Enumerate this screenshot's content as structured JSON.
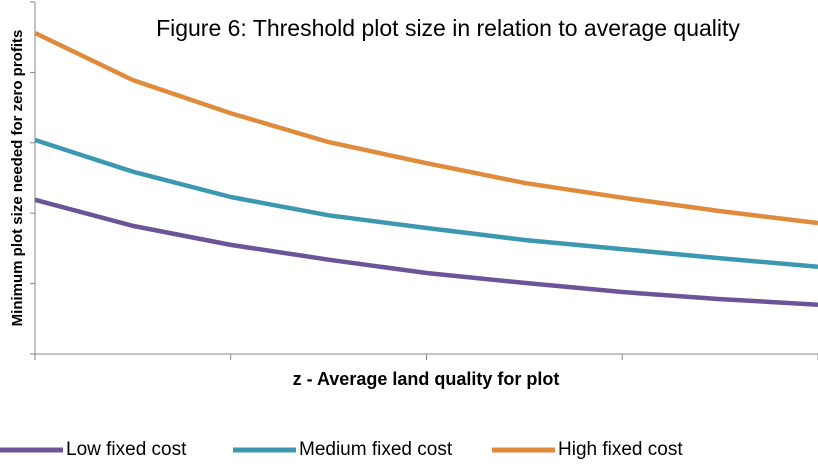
{
  "chart_data": {
    "type": "line",
    "title": "Figure 6: Threshold plot size in relation to average quality",
    "x_label": "z - Average land quality for plot",
    "y_label": "Minimum plot size needed for zero profits",
    "x": [
      0,
      0.5,
      1,
      1.5,
      2,
      2.5,
      3,
      3.5,
      4
    ],
    "series": [
      {
        "name": "Low fixed cost",
        "color": "#6b5497",
        "values": [
          2.19,
          1.82,
          1.55,
          1.34,
          1.15,
          1.01,
          0.88,
          0.78,
          0.7
        ]
      },
      {
        "name": "Medium fixed cost",
        "color": "#3c98b0",
        "values": [
          3.04,
          2.59,
          2.23,
          1.97,
          1.79,
          1.62,
          1.49,
          1.36,
          1.24
        ]
      },
      {
        "name": "High fixed cost",
        "color": "#e08a3c",
        "values": [
          4.56,
          3.89,
          3.42,
          3.01,
          2.71,
          2.43,
          2.22,
          2.03,
          1.86
        ]
      }
    ],
    "xlim": [
      0,
      4
    ],
    "xticks": [
      0,
      1,
      2,
      3,
      4
    ],
    "ylim": [
      0,
      5
    ],
    "yticks": [
      0,
      1,
      2,
      3,
      4,
      5
    ],
    "legend": "bottom"
  }
}
